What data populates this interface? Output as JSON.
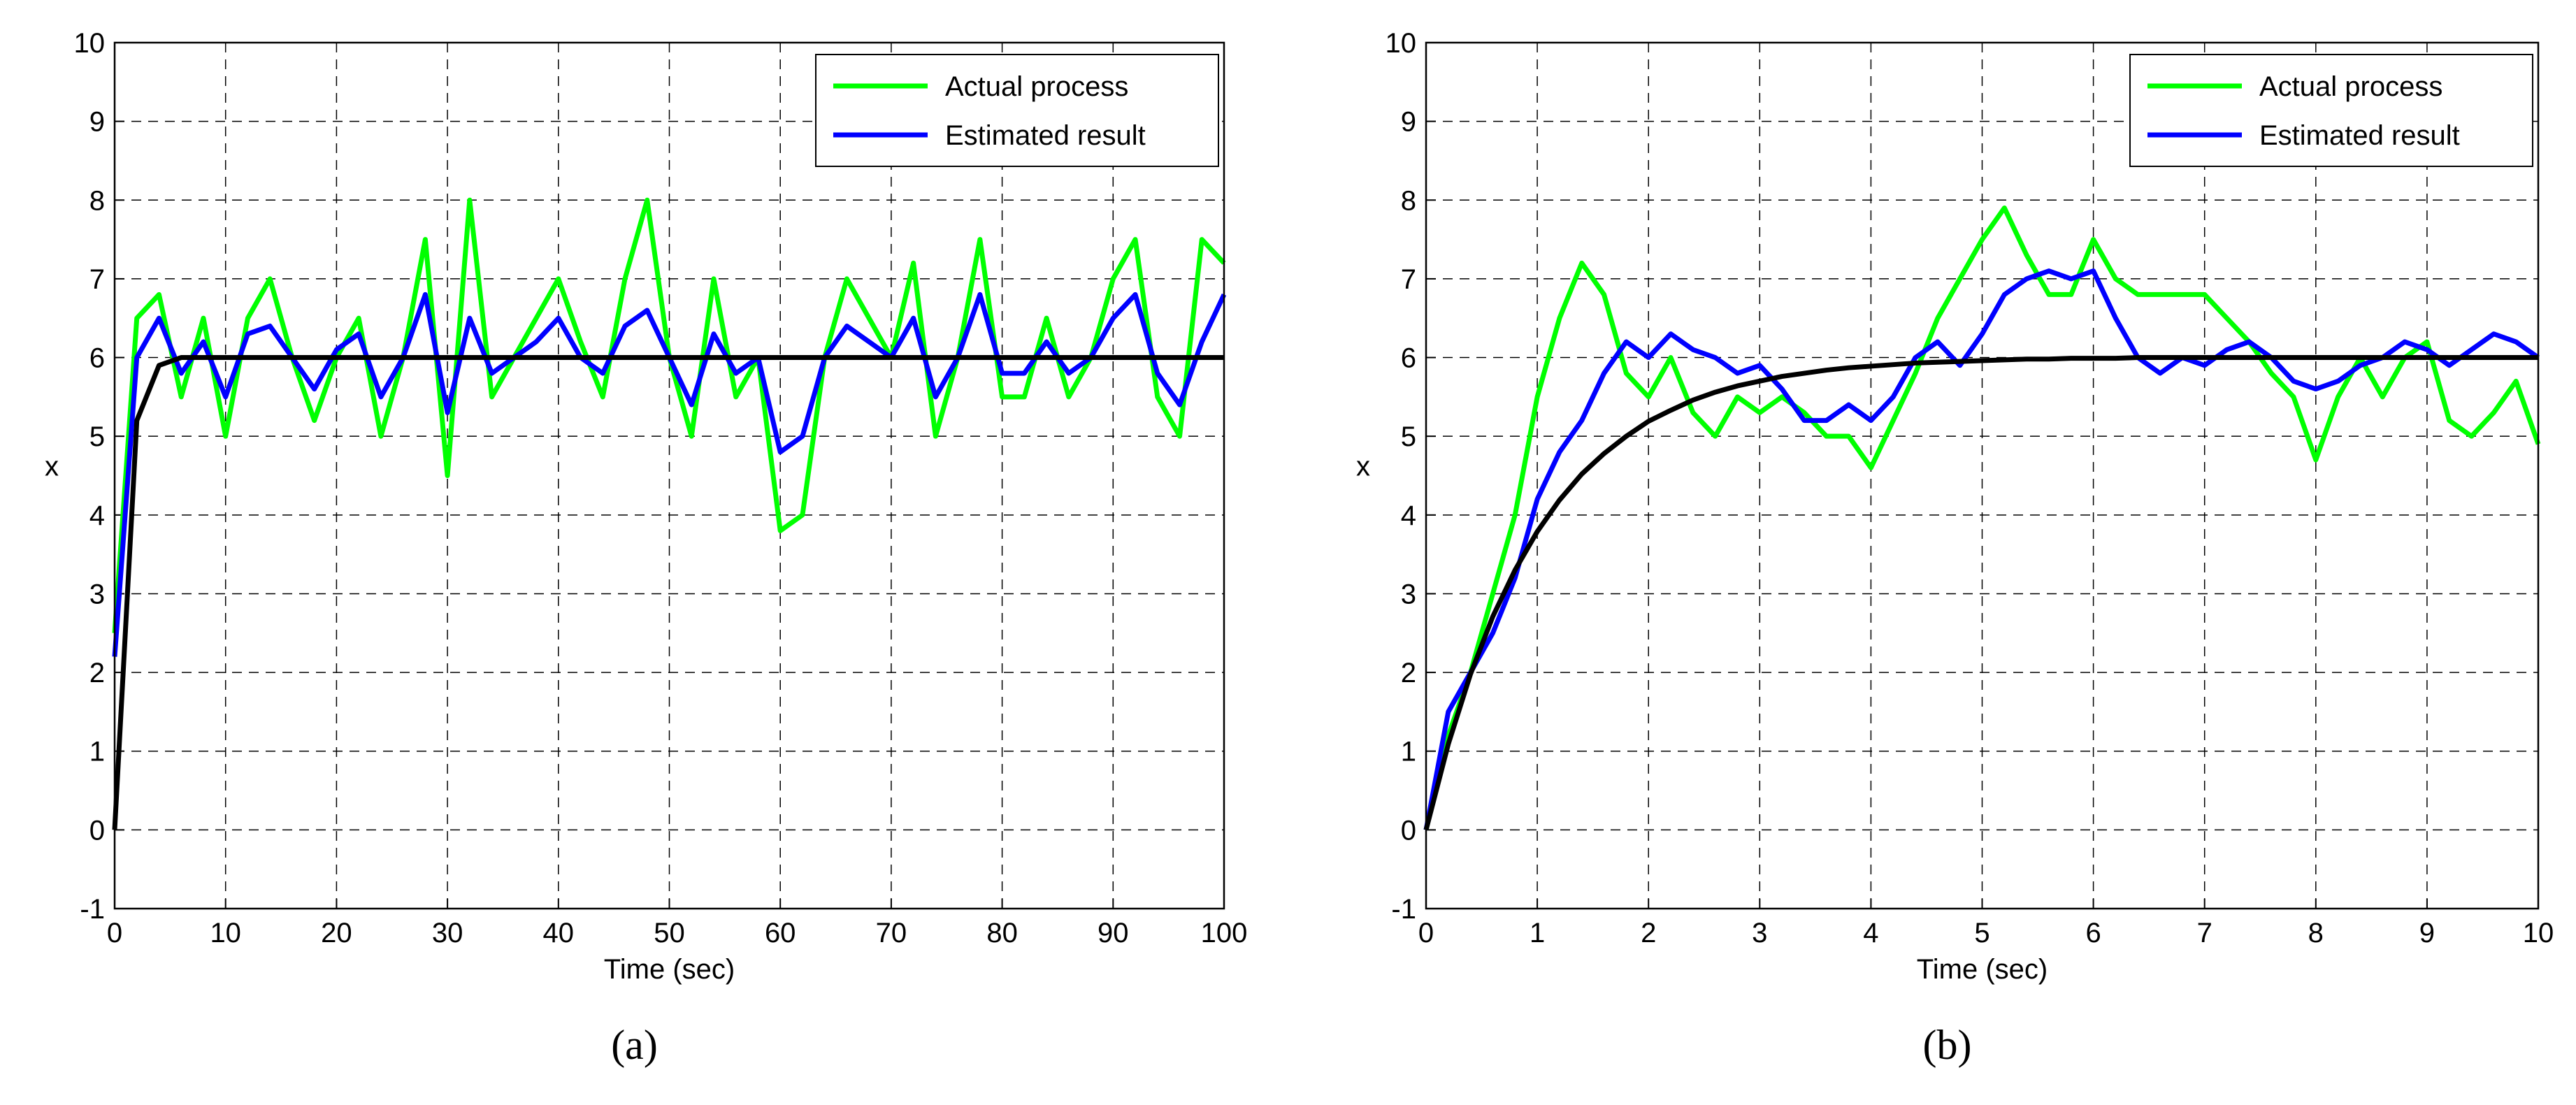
{
  "chart_data": [
    {
      "type": "line",
      "panel": "(a)",
      "xlabel": "Time (sec)",
      "ylabel": "x",
      "grid": true,
      "legend": "upper right",
      "xlim": [
        0,
        100
      ],
      "ylim": [
        -1,
        10
      ],
      "xticks": [
        0,
        10,
        20,
        30,
        40,
        50,
        60,
        70,
        80,
        90,
        100
      ],
      "yticks": [
        -1,
        0,
        1,
        2,
        3,
        4,
        5,
        6,
        7,
        8,
        9,
        10
      ],
      "x": [
        0,
        2,
        4,
        6,
        8,
        10,
        12,
        14,
        16,
        18,
        20,
        22,
        24,
        26,
        28,
        30,
        32,
        34,
        36,
        38,
        40,
        42,
        44,
        46,
        48,
        50,
        52,
        54,
        56,
        58,
        60,
        62,
        64,
        66,
        68,
        70,
        72,
        74,
        76,
        78,
        80,
        82,
        84,
        86,
        88,
        90,
        92,
        94,
        96,
        98,
        100
      ],
      "series": [
        {
          "name": "Actual process",
          "color": "#00ff00",
          "values": [
            2.5,
            6.5,
            6.8,
            5.5,
            6.5,
            5,
            6.5,
            7,
            6,
            5.2,
            6,
            6.5,
            5,
            6,
            7.5,
            4.5,
            8,
            5.5,
            6,
            6.5,
            7,
            6.2,
            5.5,
            7,
            8,
            6,
            5,
            7,
            5.5,
            6,
            3.8,
            4,
            6,
            7,
            6.5,
            6,
            7.2,
            5,
            6,
            7.5,
            5.5,
            5.5,
            6.5,
            5.5,
            6,
            7,
            7.5,
            5.5,
            5,
            7.5,
            7.2
          ]
        },
        {
          "name": "Estimated result",
          "color": "#0000ff",
          "values": [
            2.2,
            6.0,
            6.5,
            5.8,
            6.2,
            5.5,
            6.3,
            6.4,
            6.0,
            5.6,
            6.1,
            6.3,
            5.5,
            6.0,
            6.8,
            5.3,
            6.5,
            5.8,
            6.0,
            6.2,
            6.5,
            6.0,
            5.8,
            6.4,
            6.6,
            6.0,
            5.4,
            6.3,
            5.8,
            6.0,
            4.8,
            5.0,
            6.0,
            6.4,
            6.2,
            6.0,
            6.5,
            5.5,
            6.0,
            6.8,
            5.8,
            5.8,
            6.2,
            5.8,
            6.0,
            6.5,
            6.8,
            5.8,
            5.4,
            6.2,
            6.8
          ]
        },
        {
          "color": "#000000",
          "values": [
            0,
            5.2,
            5.9,
            6,
            6,
            6,
            6,
            6,
            6,
            6,
            6,
            6,
            6,
            6,
            6,
            6,
            6,
            6,
            6,
            6,
            6,
            6,
            6,
            6,
            6,
            6,
            6,
            6,
            6,
            6,
            6,
            6,
            6,
            6,
            6,
            6,
            6,
            6,
            6,
            6,
            6,
            6,
            6,
            6,
            6,
            6,
            6,
            6,
            6,
            6,
            6
          ]
        }
      ]
    },
    {
      "type": "line",
      "panel": "(b)",
      "xlabel": "Time (sec)",
      "ylabel": "x",
      "grid": true,
      "legend": "upper right",
      "xlim": [
        0,
        10
      ],
      "ylim": [
        -1,
        10
      ],
      "xticks": [
        0,
        1,
        2,
        3,
        4,
        5,
        6,
        7,
        8,
        9,
        10
      ],
      "yticks": [
        -1,
        0,
        1,
        2,
        3,
        4,
        5,
        6,
        7,
        8,
        9,
        10
      ],
      "x": [
        0,
        0.2,
        0.4,
        0.6,
        0.8,
        1,
        1.2,
        1.4,
        1.6,
        1.8,
        2,
        2.2,
        2.4,
        2.6,
        2.8,
        3,
        3.2,
        3.4,
        3.6,
        3.8,
        4,
        4.2,
        4.4,
        4.6,
        4.8,
        5,
        5.2,
        5.4,
        5.6,
        5.8,
        6,
        6.2,
        6.4,
        6.6,
        6.8,
        7,
        7.2,
        7.4,
        7.6,
        7.8,
        8,
        8.2,
        8.4,
        8.6,
        8.8,
        9,
        9.2,
        9.4,
        9.6,
        9.8,
        10
      ],
      "series": [
        {
          "name": "Actual process",
          "color": "#00ff00",
          "values": [
            0,
            1.2,
            2,
            3,
            4,
            5.5,
            6.5,
            7.2,
            6.8,
            5.8,
            5.5,
            6,
            5.3,
            5,
            5.5,
            5.3,
            5.5,
            5.3,
            5.0,
            5,
            4.6,
            5.2,
            5.8,
            6.5,
            7,
            7.5,
            7.9,
            7.3,
            6.8,
            6.8,
            7.5,
            7,
            6.8,
            6.8,
            6.8,
            6.8,
            6.5,
            6.2,
            5.8,
            5.5,
            4.7,
            5.5,
            6,
            5.5,
            6,
            6.2,
            5.2,
            5,
            5.3,
            5.7,
            4.9
          ]
        },
        {
          "name": "Estimated result",
          "color": "#0000ff",
          "values": [
            0,
            1.5,
            2,
            2.5,
            3.2,
            4.2,
            4.8,
            5.2,
            5.8,
            6.2,
            6.0,
            6.3,
            6.1,
            6.0,
            5.8,
            5.9,
            5.6,
            5.2,
            5.2,
            5.4,
            5.2,
            5.5,
            6.0,
            6.2,
            5.9,
            6.3,
            6.8,
            7.0,
            7.1,
            7.0,
            7.1,
            6.5,
            6.0,
            5.8,
            6.0,
            5.9,
            6.1,
            6.2,
            6.0,
            5.7,
            5.6,
            5.7,
            5.9,
            6.0,
            6.2,
            6.1,
            5.9,
            6.1,
            6.3,
            6.2,
            6.0
          ]
        },
        {
          "color": "#000000",
          "values": [
            0,
            1.09,
            1.98,
            2.71,
            3.3,
            3.79,
            4.19,
            4.52,
            4.78,
            5.0,
            5.19,
            5.33,
            5.46,
            5.56,
            5.64,
            5.7,
            5.76,
            5.8,
            5.84,
            5.87,
            5.89,
            5.91,
            5.93,
            5.94,
            5.95,
            5.96,
            5.97,
            5.98,
            5.98,
            5.99,
            5.99,
            5.99,
            6,
            6,
            6,
            6,
            6,
            6,
            6,
            6,
            6,
            6,
            6,
            6,
            6,
            6,
            6,
            6,
            6,
            6,
            6
          ]
        }
      ]
    }
  ]
}
